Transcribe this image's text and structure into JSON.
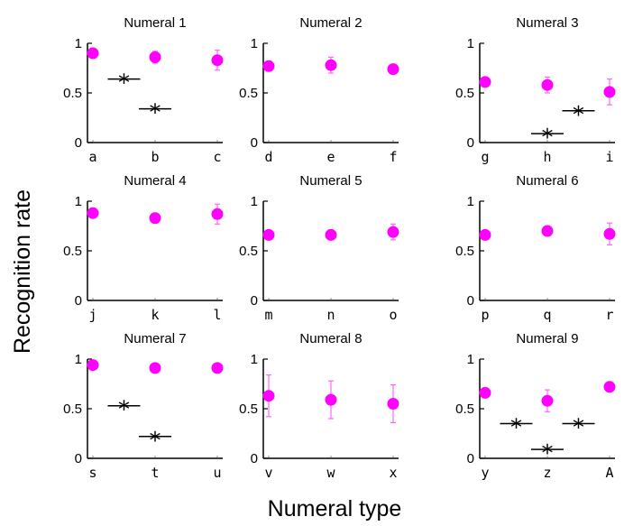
{
  "chart_data": {
    "type": "scatter",
    "xlabel": "Numeral type",
    "ylabel": "Recognition rate",
    "ylim": [
      0,
      1
    ],
    "yticks": [
      "0",
      "0.5",
      "1"
    ],
    "colors": {
      "points": "#ff00ff",
      "errorbars": "#ff66ff",
      "axes": "#000000"
    },
    "panels": [
      {
        "title": "Numeral 1",
        "categories": [
          "a",
          "b",
          "c"
        ],
        "values": [
          0.9,
          0.86,
          0.83
        ],
        "errors": [
          0.05,
          0.06,
          0.1
        ],
        "significance": [
          {
            "between": [
              0,
              1
            ],
            "y": 0.64,
            "symbol": "*"
          },
          {
            "between": [
              0.5,
              1.5
            ],
            "y": 0.34,
            "symbol": "*"
          }
        ]
      },
      {
        "title": "Numeral 2",
        "categories": [
          "d",
          "e",
          "f"
        ],
        "values": [
          0.77,
          0.78,
          0.74
        ],
        "errors": [
          0.05,
          0.08,
          0.04
        ],
        "significance": []
      },
      {
        "title": "Numeral 3",
        "categories": [
          "g",
          "h",
          "i"
        ],
        "values": [
          0.61,
          0.58,
          0.51
        ],
        "errors": [
          0.04,
          0.08,
          0.13
        ],
        "significance": [
          {
            "between": [
              0.5,
              1.5
            ],
            "y": 0.09,
            "symbol": "*"
          },
          {
            "between": [
              1,
              2
            ],
            "y": 0.32,
            "symbol": "*"
          }
        ]
      },
      {
        "title": "Numeral 4",
        "categories": [
          "j",
          "k",
          "l"
        ],
        "values": [
          0.88,
          0.83,
          0.87
        ],
        "errors": [
          0.05,
          0.05,
          0.1
        ],
        "significance": []
      },
      {
        "title": "Numeral 5",
        "categories": [
          "m",
          "n",
          "o"
        ],
        "values": [
          0.66,
          0.66,
          0.69
        ],
        "errors": [
          0.04,
          0.05,
          0.08
        ],
        "significance": []
      },
      {
        "title": "Numeral 6",
        "categories": [
          "p",
          "q",
          "r"
        ],
        "values": [
          0.66,
          0.7,
          0.67
        ],
        "errors": [
          0.04,
          0.05,
          0.11
        ],
        "significance": []
      },
      {
        "title": "Numeral 7",
        "categories": [
          "s",
          "t",
          "u"
        ],
        "values": [
          0.94,
          0.91,
          0.91
        ],
        "errors": [
          0.04,
          0.03,
          0.03
        ],
        "significance": [
          {
            "between": [
              0,
              1
            ],
            "y": 0.53,
            "symbol": "*"
          },
          {
            "between": [
              0.5,
              1.5
            ],
            "y": 0.22,
            "symbol": "*"
          }
        ]
      },
      {
        "title": "Numeral 8",
        "categories": [
          "v",
          "w",
          "x"
        ],
        "values": [
          0.63,
          0.59,
          0.55
        ],
        "errors": [
          0.21,
          0.19,
          0.19
        ],
        "significance": []
      },
      {
        "title": "Numeral 9",
        "categories": [
          "y",
          "z",
          "A"
        ],
        "values": [
          0.66,
          0.58,
          0.72
        ],
        "errors": [
          0.04,
          0.11,
          0.04
        ],
        "significance": [
          {
            "between": [
              0,
              1
            ],
            "y": 0.35,
            "symbol": "*"
          },
          {
            "between": [
              0.5,
              1.5
            ],
            "y": 0.09,
            "symbol": "*"
          },
          {
            "between": [
              1,
              2
            ],
            "y": 0.35,
            "symbol": "*"
          }
        ]
      }
    ]
  }
}
